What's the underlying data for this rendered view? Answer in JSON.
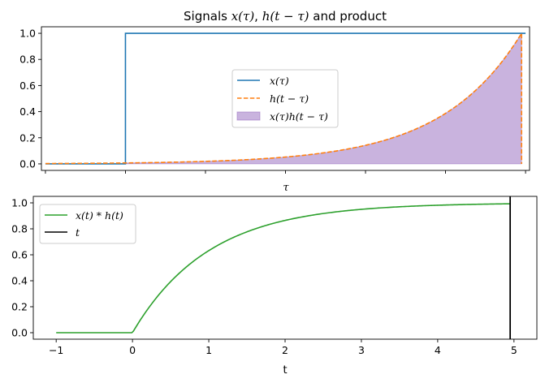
{
  "chart_data": [
    {
      "type": "line",
      "title": "Signals x(τ), h(t − τ) and product",
      "title_parts": [
        {
          "text": "Signals ",
          "math": false
        },
        {
          "text": "x(τ)",
          "math": true
        },
        {
          "text": ", ",
          "math": false
        },
        {
          "text": "h(t − τ)",
          "math": true
        },
        {
          "text": " and product",
          "math": false
        }
      ],
      "xlabel": "τ",
      "ylabel": "",
      "xlim": [
        -1.05,
        5.05
      ],
      "ylim": [
        -0.05,
        1.05
      ],
      "xticks": [
        -1,
        0,
        1,
        2,
        3,
        4,
        5
      ],
      "xtick_labels_visible": false,
      "yticks": [
        0.0,
        0.2,
        0.4,
        0.6,
        0.8,
        1.0
      ],
      "ytick_labels": [
        "0.0",
        "0.2",
        "0.4",
        "0.6",
        "0.8",
        "1.0"
      ],
      "legend_position": "center",
      "grid": false,
      "t_value": 4.95,
      "series": [
        {
          "name": "x(τ)",
          "kind": "step",
          "style": "solid",
          "color": "#1f77b4",
          "x": [
            -1,
            0,
            0,
            5
          ],
          "y": [
            0,
            0,
            1,
            1
          ]
        },
        {
          "name": "h(t − τ)",
          "kind": "exp-decay",
          "style": "dashed",
          "color": "#ff7f0e",
          "x_start": -1,
          "t": 4.95,
          "x_end": 4.95,
          "decay_rate": 1
        },
        {
          "name": "x(τ)h(t − τ)",
          "kind": "filled-area",
          "color": "#9467bd",
          "x_start": 0,
          "x_end": 4.95,
          "decay_rate": 1
        }
      ]
    },
    {
      "type": "line",
      "title": "",
      "xlabel": "t",
      "ylabel": "",
      "xlim": [
        -1.3,
        5.3
      ],
      "ylim": [
        -0.05,
        1.05
      ],
      "xticks": [
        -1,
        0,
        1,
        2,
        3,
        4,
        5
      ],
      "xtick_labels": [
        "−1",
        "0",
        "1",
        "2",
        "3",
        "4",
        "5"
      ],
      "yticks": [
        0.0,
        0.2,
        0.4,
        0.6,
        0.8,
        1.0
      ],
      "ytick_labels": [
        "0.0",
        "0.2",
        "0.4",
        "0.6",
        "0.8",
        "1.0"
      ],
      "legend_position": "upper left",
      "grid": false,
      "series": [
        {
          "name": "x(t) * h(t)",
          "kind": "step-response",
          "style": "solid",
          "color": "#2ca02c",
          "x_start": -1,
          "x_end": 4.95,
          "decay_rate": 1
        },
        {
          "name": "t",
          "kind": "vline",
          "style": "solid",
          "color": "#000000",
          "x": 4.95
        }
      ]
    }
  ]
}
